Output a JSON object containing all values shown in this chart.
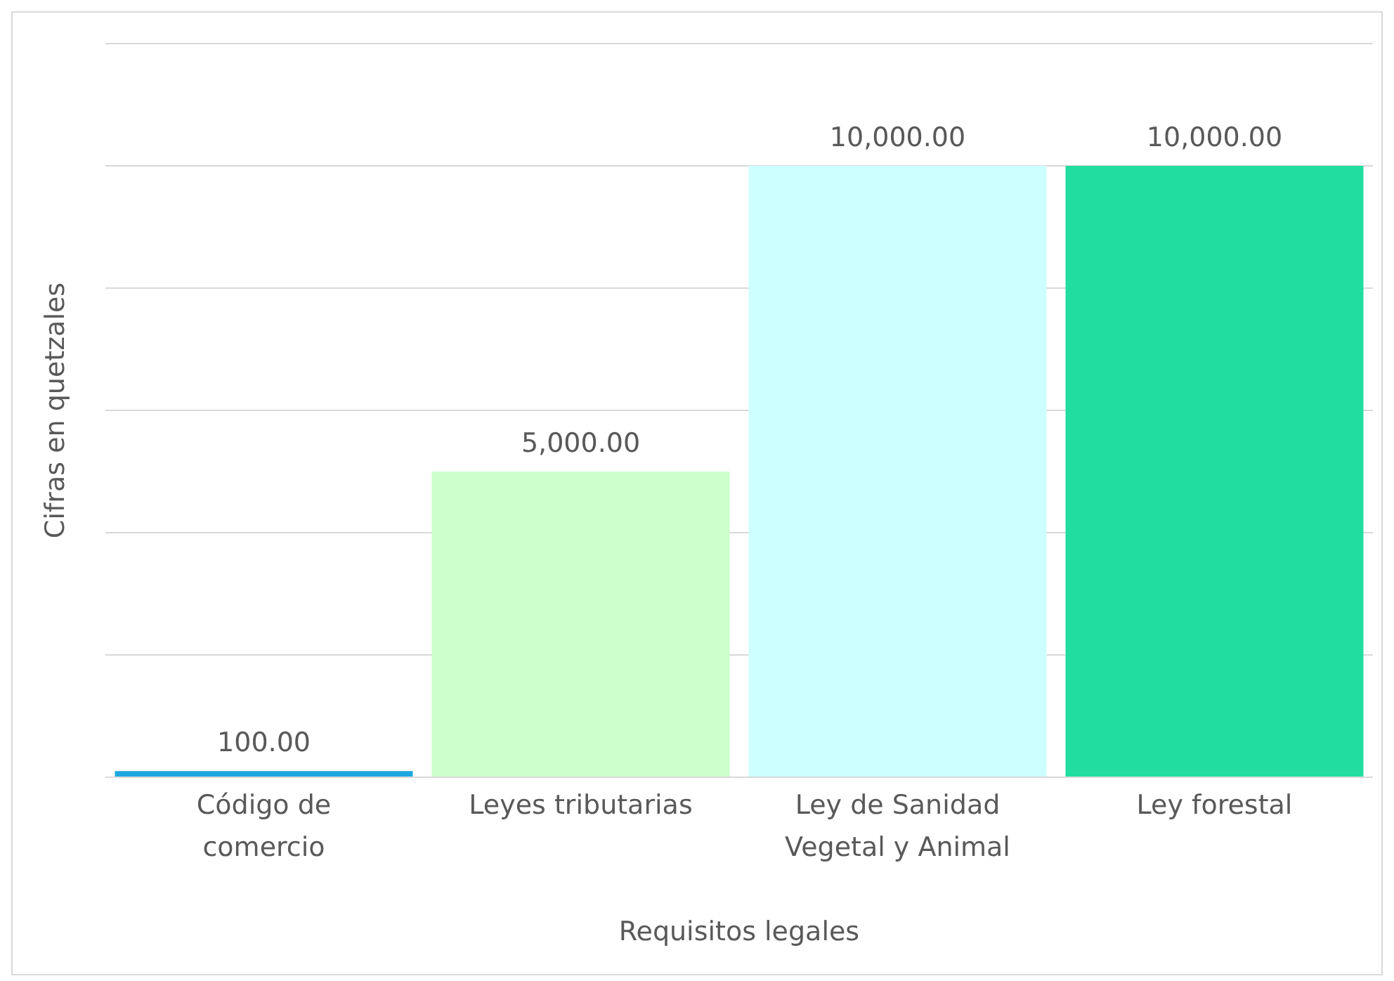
{
  "chart_data": {
    "type": "bar",
    "xlabel": "Requisitos legales",
    "ylabel": "Cifras en quetzales",
    "categories": [
      "Código de comercio",
      "Leyes tributarias",
      "Ley de Sanidad Vegetal y Animal",
      "Ley forestal"
    ],
    "values": [
      100,
      5000,
      10000,
      10000
    ],
    "colors": [
      "#1ea7e1",
      "#ccffcc",
      "#ccffff",
      "#22dda0"
    ],
    "value_labels": [
      "100.00",
      "5,000.00",
      "10,000.00",
      "10,000.00"
    ],
    "ylim": [
      0,
      12000
    ],
    "yticks": [
      {
        "value": 0,
        "label": null
      },
      {
        "value": 2000,
        "label": null
      },
      {
        "value": 4000,
        "label": null
      },
      {
        "value": 6000,
        "label": null
      },
      {
        "value": 8000,
        "label": null
      },
      {
        "value": 10000,
        "label": null
      },
      {
        "value": 12000,
        "label": null
      }
    ],
    "tick_labels": "x",
    "grid": "y",
    "legend": false
  }
}
